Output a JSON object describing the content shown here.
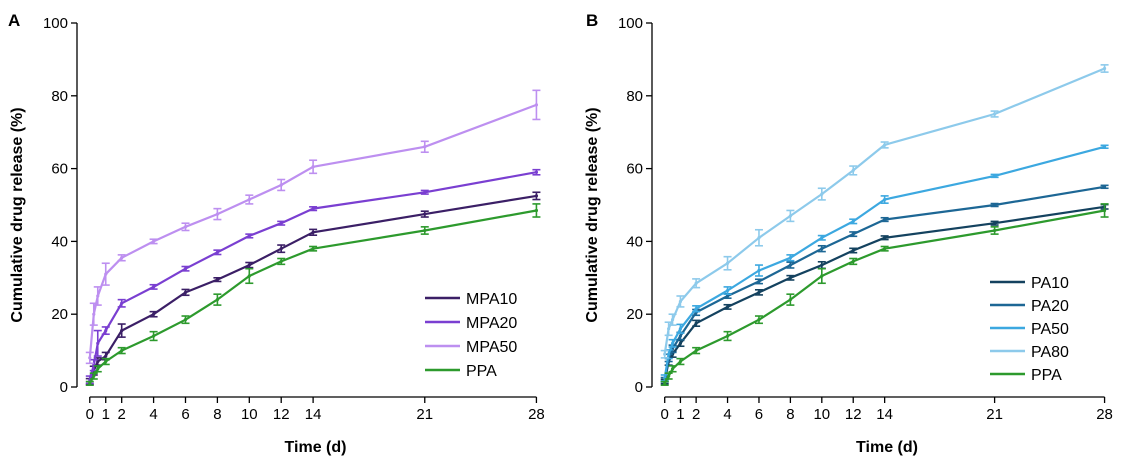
{
  "chart_data": [
    {
      "type": "line",
      "panel_label": "A",
      "xlabel": "Time (d)",
      "ylabel": "Cumulative drug release (%)",
      "x_ticks": [
        0,
        1,
        2,
        4,
        6,
        8,
        10,
        12,
        14,
        21,
        28
      ],
      "y_ticks": [
        0,
        20,
        40,
        60,
        80,
        100
      ],
      "xlim": [
        -0.3,
        28.6
      ],
      "ylim": [
        0,
        100
      ],
      "grid": false,
      "legend_position": "bottom-right",
      "series": [
        {
          "name": "MPA10",
          "color": "#3b1f66",
          "x": [
            0,
            0.25,
            0.5,
            1,
            2,
            4,
            6,
            8,
            10,
            12,
            14,
            21,
            28
          ],
          "y": [
            1.5,
            4.5,
            7,
            8.5,
            15.5,
            20,
            26,
            29.5,
            33.5,
            38,
            42.5,
            47.5,
            52.5
          ],
          "err": [
            0.8,
            1.2,
            1.0,
            1.0,
            1.8,
            0.7,
            0.8,
            0.5,
            0.7,
            1.0,
            0.8,
            0.8,
            1.0
          ]
        },
        {
          "name": "MPA20",
          "color": "#7a3fd1",
          "x": [
            0,
            0.25,
            0.5,
            1,
            2,
            4,
            6,
            8,
            10,
            12,
            14,
            21,
            28
          ],
          "y": [
            2,
            6,
            12,
            15.5,
            23,
            27.5,
            32.5,
            37,
            41.5,
            45,
            49,
            53.5,
            59
          ],
          "err": [
            1.0,
            1.5,
            3.5,
            1.0,
            1.0,
            0.6,
            0.6,
            0.6,
            0.5,
            0.5,
            0.5,
            0.5,
            0.7
          ]
        },
        {
          "name": "MPA50",
          "color": "#bd8ff0",
          "x": [
            0,
            0.25,
            0.5,
            1,
            2,
            4,
            6,
            8,
            10,
            12,
            14,
            21,
            28
          ],
          "y": [
            8,
            20,
            25,
            31,
            35.5,
            40,
            44,
            47.5,
            51.5,
            55.5,
            60.5,
            66,
            77.5
          ],
          "err": [
            1.5,
            3.0,
            2.5,
            3.0,
            0.8,
            0.6,
            1.0,
            1.5,
            1.2,
            1.5,
            1.8,
            1.5,
            4.0
          ]
        },
        {
          "name": "PPA",
          "color": "#2d9a2d",
          "x": [
            0,
            0.25,
            0.5,
            1,
            2,
            4,
            6,
            8,
            10,
            12,
            14,
            21,
            28
          ],
          "y": [
            1,
            3,
            5,
            7,
            10,
            14,
            18.5,
            24,
            30.5,
            34.5,
            38,
            43,
            48.5
          ],
          "err": [
            0.5,
            0.8,
            0.8,
            0.8,
            0.8,
            1.2,
            1.0,
            1.5,
            2.0,
            0.8,
            0.6,
            1.0,
            1.8
          ]
        }
      ]
    },
    {
      "type": "line",
      "panel_label": "B",
      "xlabel": "Time (d)",
      "ylabel": "Cumulative drug release (%)",
      "x_ticks": [
        0,
        1,
        2,
        4,
        6,
        8,
        10,
        12,
        14,
        21,
        28
      ],
      "y_ticks": [
        0,
        20,
        40,
        60,
        80,
        100
      ],
      "xlim": [
        -0.3,
        28.6
      ],
      "ylim": [
        0,
        100
      ],
      "grid": false,
      "legend_position": "bottom-right",
      "series": [
        {
          "name": "PA10",
          "color": "#14425f",
          "x": [
            0,
            0.25,
            0.5,
            1,
            2,
            4,
            6,
            8,
            10,
            12,
            14,
            21,
            28
          ],
          "y": [
            1.5,
            7,
            9,
            12,
            17.5,
            22,
            26,
            30,
            33.5,
            37.5,
            41,
            45,
            49.5
          ],
          "err": [
            0.6,
            1.0,
            0.8,
            0.8,
            0.8,
            0.6,
            0.7,
            0.6,
            0.9,
            0.6,
            0.5,
            0.5,
            0.6
          ]
        },
        {
          "name": "PA20",
          "color": "#1d6795",
          "x": [
            0,
            0.25,
            0.5,
            1,
            2,
            4,
            6,
            8,
            10,
            12,
            14,
            21,
            28
          ],
          "y": [
            2,
            8,
            10.5,
            14,
            20.5,
            25,
            29,
            33.5,
            38,
            42,
            46,
            50,
            55
          ],
          "err": [
            0.6,
            1.0,
            1.0,
            1.0,
            0.8,
            0.6,
            0.6,
            0.8,
            0.8,
            0.6,
            0.5,
            0.4,
            0.4
          ]
        },
        {
          "name": "PA50",
          "color": "#3ca8e0",
          "x": [
            0,
            0.25,
            0.5,
            1,
            2,
            4,
            6,
            8,
            10,
            12,
            14,
            21,
            28
          ],
          "y": [
            2.5,
            9,
            12,
            16,
            21.5,
            26.5,
            32,
            35.5,
            41,
            45.5,
            51.5,
            58,
            66
          ],
          "err": [
            0.8,
            1.2,
            1.0,
            1.2,
            0.8,
            1.0,
            1.5,
            0.8,
            0.6,
            0.6,
            1.0,
            0.4,
            0.4
          ]
        },
        {
          "name": "PA80",
          "color": "#8dcaeb",
          "x": [
            0,
            0.25,
            0.5,
            1,
            2,
            4,
            6,
            8,
            10,
            12,
            14,
            21,
            28
          ],
          "y": [
            9,
            16,
            18.5,
            23.5,
            28.5,
            34,
            41,
            47,
            53,
            59.5,
            66.5,
            75,
            87.5
          ],
          "err": [
            1.0,
            1.8,
            1.5,
            1.5,
            1.2,
            1.8,
            2.2,
            1.5,
            1.6,
            1.2,
            0.8,
            0.8,
            1.0
          ]
        },
        {
          "name": "PPA",
          "color": "#2d9a2d",
          "x": [
            0,
            0.25,
            0.5,
            1,
            2,
            4,
            6,
            8,
            10,
            12,
            14,
            21,
            28
          ],
          "y": [
            1,
            3,
            5,
            7,
            10,
            14,
            18.5,
            24,
            30.5,
            34.5,
            38,
            43,
            48.5
          ],
          "err": [
            0.5,
            0.8,
            0.8,
            0.8,
            0.8,
            1.2,
            1.0,
            1.5,
            2.0,
            0.8,
            0.6,
            1.0,
            1.8
          ]
        }
      ]
    }
  ]
}
